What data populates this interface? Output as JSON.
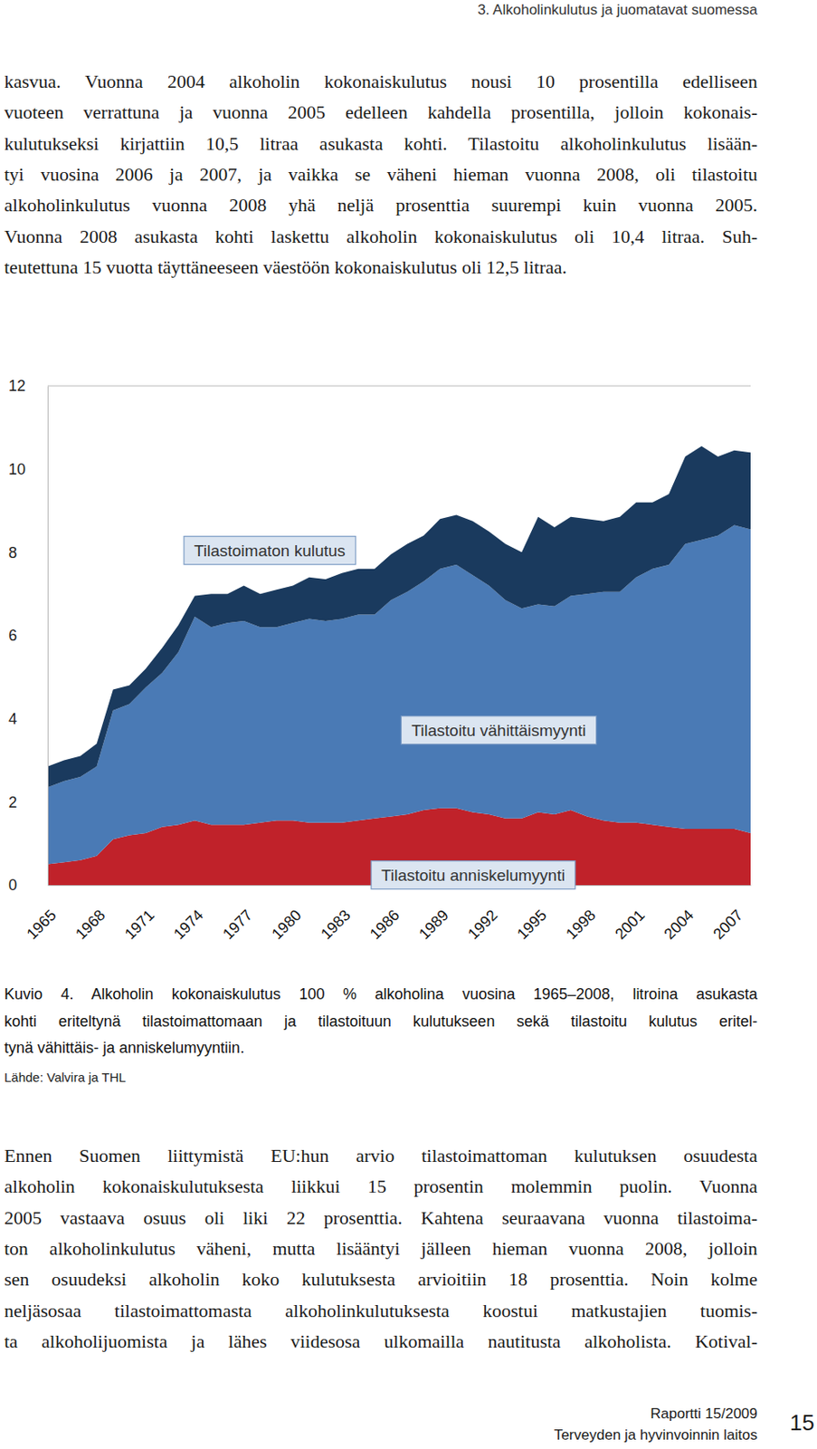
{
  "header": "3. Alkoholinkulutus ja juomatavat suomessa",
  "text_above": [
    "kasvua. Vuonna 2004 alkoholin kokonaiskulutus nousi 10 prosentilla edelliseen",
    "vuoteen verrattuna ja vuonna 2005 edelleen kahdella prosentilla, jolloin kokonais-",
    "kulutukseksi kirjattiin 10,5 litraa asukasta kohti. Tilastoitu alkoholinkulutus lisään-",
    "tyi vuosina 2006 ja 2007, ja vaikka se väheni hieman vuonna 2008, oli tilastoitu",
    "alkoholinkulutus vuonna 2008 yhä neljä prosenttia suurempi kuin vuonna 2005.",
    "Vuonna 2008 asukasta kohti laskettu alkoholin kokonaiskulutus oli 10,4 litraa. Suh-",
    "teutettuna 15 vuotta täyttäneeseen väestöön kokonaiskulutus oli 12,5 litraa."
  ],
  "chart_data": {
    "type": "area",
    "stacked": true,
    "x": [
      1965,
      1966,
      1967,
      1968,
      1969,
      1970,
      1971,
      1972,
      1973,
      1974,
      1975,
      1976,
      1977,
      1978,
      1979,
      1980,
      1981,
      1982,
      1983,
      1984,
      1985,
      1986,
      1987,
      1988,
      1989,
      1990,
      1991,
      1992,
      1993,
      1994,
      1995,
      1996,
      1997,
      1998,
      1999,
      2000,
      2001,
      2002,
      2003,
      2004,
      2005,
      2006,
      2007,
      2008
    ],
    "xlim": [
      1965,
      2008
    ],
    "xticks": [
      1965,
      1968,
      1971,
      1974,
      1977,
      1980,
      1983,
      1986,
      1989,
      1992,
      1995,
      1998,
      2001,
      2004,
      2007
    ],
    "ylim": [
      0,
      12
    ],
    "yticks": [
      0,
      2,
      4,
      6,
      8,
      10,
      12
    ],
    "series": [
      {
        "name": "Tilastoitu anniskelumyynti",
        "color": "#c0222a",
        "values": [
          0.5,
          0.55,
          0.6,
          0.7,
          1.1,
          1.2,
          1.25,
          1.4,
          1.45,
          1.55,
          1.45,
          1.45,
          1.45,
          1.5,
          1.55,
          1.55,
          1.5,
          1.5,
          1.5,
          1.55,
          1.6,
          1.65,
          1.7,
          1.8,
          1.85,
          1.85,
          1.75,
          1.7,
          1.6,
          1.6,
          1.75,
          1.7,
          1.8,
          1.65,
          1.55,
          1.5,
          1.5,
          1.45,
          1.4,
          1.35,
          1.35,
          1.35,
          1.35,
          1.25
        ]
      },
      {
        "name": "Tilastoitu vähittäismyynti",
        "color": "#4a7ab5",
        "values": [
          1.85,
          1.95,
          2.0,
          2.15,
          3.1,
          3.15,
          3.5,
          3.7,
          4.15,
          4.9,
          4.75,
          4.85,
          4.9,
          4.7,
          4.65,
          4.75,
          4.9,
          4.85,
          4.9,
          4.95,
          4.9,
          5.2,
          5.35,
          5.5,
          5.75,
          5.85,
          5.7,
          5.5,
          5.25,
          5.05,
          5.0,
          5.0,
          5.15,
          5.35,
          5.5,
          5.55,
          5.9,
          6.15,
          6.3,
          6.85,
          6.95,
          7.05,
          7.3,
          7.3
        ]
      },
      {
        "name": "Tilastoimaton kulutus",
        "color": "#1a3a5e",
        "values": [
          0.5,
          0.5,
          0.5,
          0.55,
          0.5,
          0.45,
          0.45,
          0.6,
          0.65,
          0.5,
          0.8,
          0.7,
          0.85,
          0.8,
          0.9,
          0.9,
          1.0,
          1.0,
          1.1,
          1.1,
          1.1,
          1.1,
          1.15,
          1.1,
          1.2,
          1.2,
          1.3,
          1.3,
          1.35,
          1.35,
          2.1,
          1.9,
          1.9,
          1.8,
          1.7,
          1.8,
          1.8,
          1.6,
          1.7,
          2.1,
          2.25,
          1.9,
          1.8,
          1.85
        ]
      }
    ]
  },
  "caption": [
    "Kuvio 4. Alkoholin kokonaiskulutus 100 % alkoholina vuosina 1965–2008, litroina asukasta",
    "kohti eriteltynä tilastoimattomaan ja tilastoituun kulutukseen sekä tilastoitu kulutus eritel-",
    "tynä vähittäis- ja anniskelumyyntiin."
  ],
  "source": "Lähde: Valvira ja THL",
  "text_below": [
    "Ennen Suomen liittymistä EU:hun arvio tilastoimattoman kulutuksen osuudesta",
    "alkoholin kokonaiskulutuksesta liikkui 15 prosentin molemmin puolin. Vuonna",
    "2005 vastaava osuus oli liki 22 prosenttia. Kahtena seuraavana vuonna tilastoima-",
    "ton alkoholinkulutus väheni, mutta lisääntyi jälleen hieman vuonna 2008, jolloin",
    "sen osuudeksi alkoholin koko kulutuksesta arvioitiin 18 prosenttia. Noin kolme",
    "neljäsosaa tilastoimattomasta alkoholinkulutuksesta koostui matkustajien tuomis-",
    "ta alkoholijuomista ja lähes viidesosa ulkomailla nautitusta alkoholista. Kotival-"
  ],
  "footer": {
    "report": "Raportti 15/2009",
    "publisher": "Terveyden ja hyvinvoinnin laitos",
    "page": "15"
  }
}
